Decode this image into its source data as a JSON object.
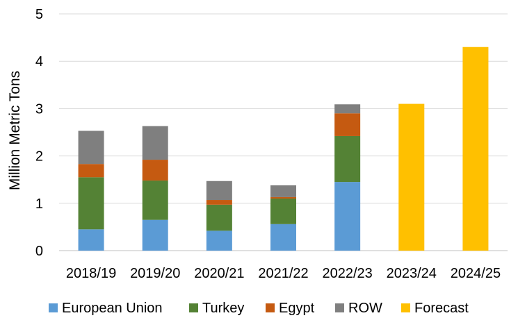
{
  "chart_data": {
    "type": "bar",
    "stacked": true,
    "title": "",
    "xlabel": "",
    "ylabel": "Million Metric Tons",
    "ylim": [
      0,
      5
    ],
    "yticks": [
      "0",
      "1",
      "2",
      "3",
      "4",
      "5"
    ],
    "grid": true,
    "legend_position": "bottom",
    "categories": [
      "2018/19",
      "2019/20",
      "2020/21",
      "2021/22",
      "2022/23",
      "2023/24",
      "2024/25"
    ],
    "series": [
      {
        "name": "European Union",
        "color": "#5b9bd5",
        "values": [
          0.45,
          0.65,
          0.42,
          0.56,
          1.45,
          0,
          0
        ]
      },
      {
        "name": "Turkey",
        "color": "#548235",
        "values": [
          1.1,
          0.83,
          0.55,
          0.54,
          0.97,
          0,
          0
        ]
      },
      {
        "name": "Egypt",
        "color": "#c55a11",
        "values": [
          0.28,
          0.44,
          0.1,
          0.03,
          0.48,
          0,
          0
        ]
      },
      {
        "name": "ROW",
        "color": "#7f7f7f",
        "values": [
          0.7,
          0.71,
          0.4,
          0.25,
          0.19,
          0,
          0
        ]
      },
      {
        "name": "Forecast",
        "color": "#ffc000",
        "values": [
          0,
          0,
          0,
          0,
          0,
          3.1,
          4.3
        ]
      }
    ]
  }
}
